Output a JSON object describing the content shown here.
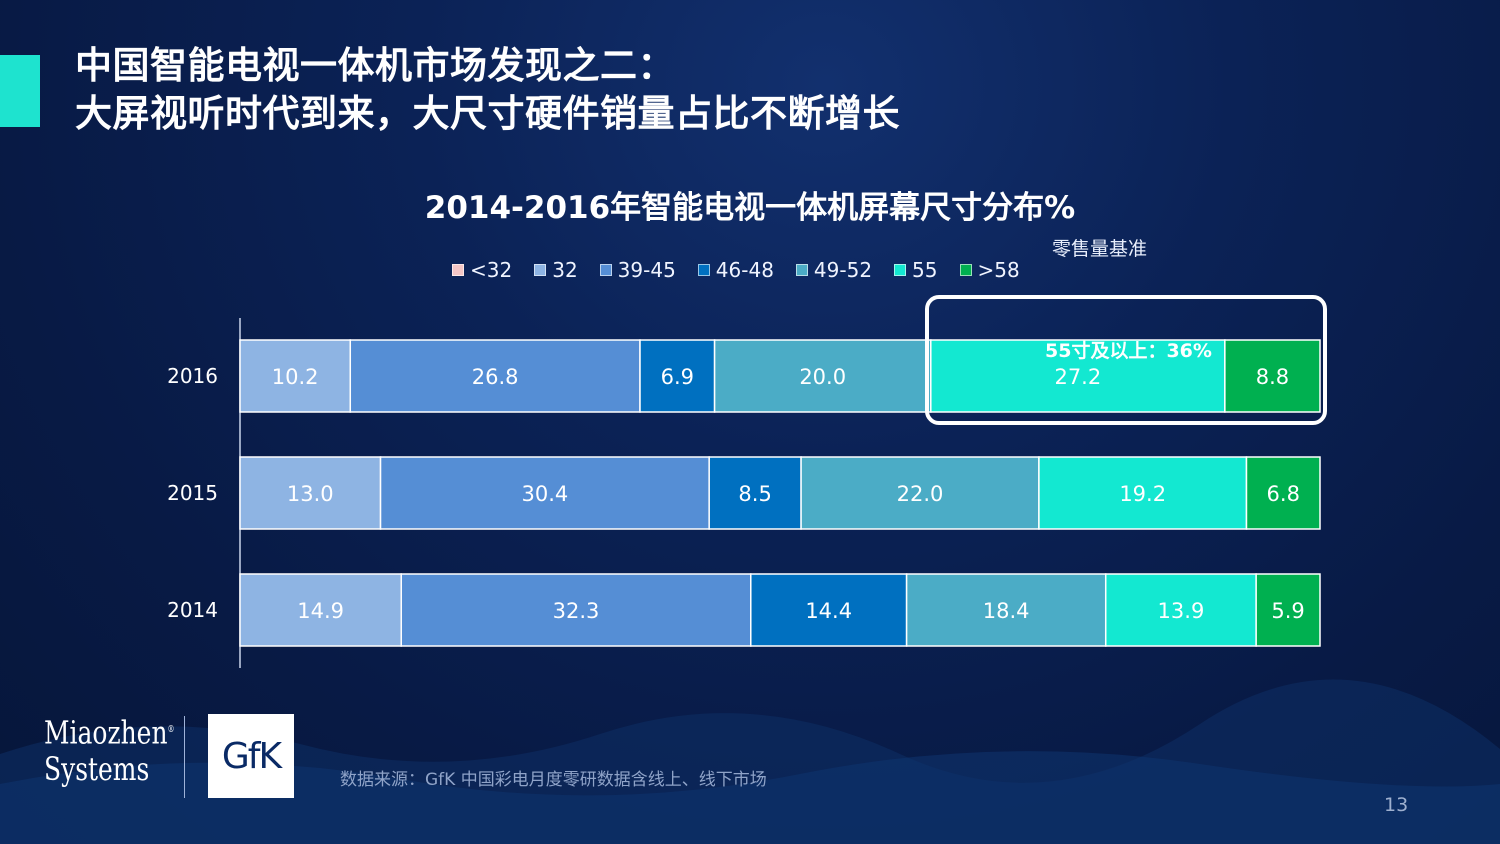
{
  "title": {
    "line1": "中国智能电视一体机市场发现之二：",
    "line2": "大屏视听时代到来，大尺寸硬件销量占比不断增长"
  },
  "basis_note": "零售量基准",
  "highlight": {
    "label": "55寸及以上：36%"
  },
  "source": "数据来源：GfK 中国彩电月度零研数据含线上、线下市场",
  "page_number": "13",
  "logos": {
    "miaozhen_line1": "Miaozhen",
    "miaozhen_line2": "Systems",
    "registered": "®",
    "gfk": "GfK"
  },
  "colors": {
    "accent": "#1ee3cf",
    "lt32": "#f4c6c6",
    "s32": "#8eb4e3",
    "s39_45": "#558ed5",
    "s46_48": "#0070c0",
    "s49_52": "#4bacc6",
    "s55": "#13e8d1",
    "gt58": "#00b050"
  },
  "chart_data": {
    "type": "bar",
    "orientation": "horizontal-stacked-100",
    "title": "2014-2016年智能电视一体机屏幕尺寸分布%",
    "unit": "%",
    "categories": [
      "2016",
      "2015",
      "2014"
    ],
    "series": [
      {
        "name": "<32",
        "color_key": "lt32",
        "values": [
          0,
          0,
          0
        ]
      },
      {
        "name": "32",
        "color_key": "s32",
        "values": [
          10.2,
          13.0,
          14.9
        ]
      },
      {
        "name": "39-45",
        "color_key": "s39_45",
        "values": [
          26.8,
          30.4,
          32.3
        ]
      },
      {
        "name": "46-48",
        "color_key": "s46_48",
        "values": [
          6.9,
          8.5,
          14.4
        ]
      },
      {
        "name": "49-52",
        "color_key": "s49_52",
        "values": [
          20.0,
          22.0,
          18.4
        ]
      },
      {
        "name": "55",
        "color_key": "s55",
        "values": [
          27.2,
          19.2,
          13.9
        ]
      },
      {
        "name": ">58",
        "color_key": "gt58",
        "values": [
          8.8,
          6.8,
          5.9
        ]
      }
    ],
    "labels": [
      [
        "10.2",
        "26.8",
        "6.9",
        "20.0",
        "27.2",
        "8.8"
      ],
      [
        "13.0",
        "30.4",
        "8.5",
        "22.0",
        "19.2",
        "6.8"
      ],
      [
        "14.9",
        "32.3",
        "14.4",
        "18.4",
        "13.9",
        "5.9"
      ]
    ],
    "xlim": [
      0,
      100
    ],
    "legend_position": "top"
  }
}
